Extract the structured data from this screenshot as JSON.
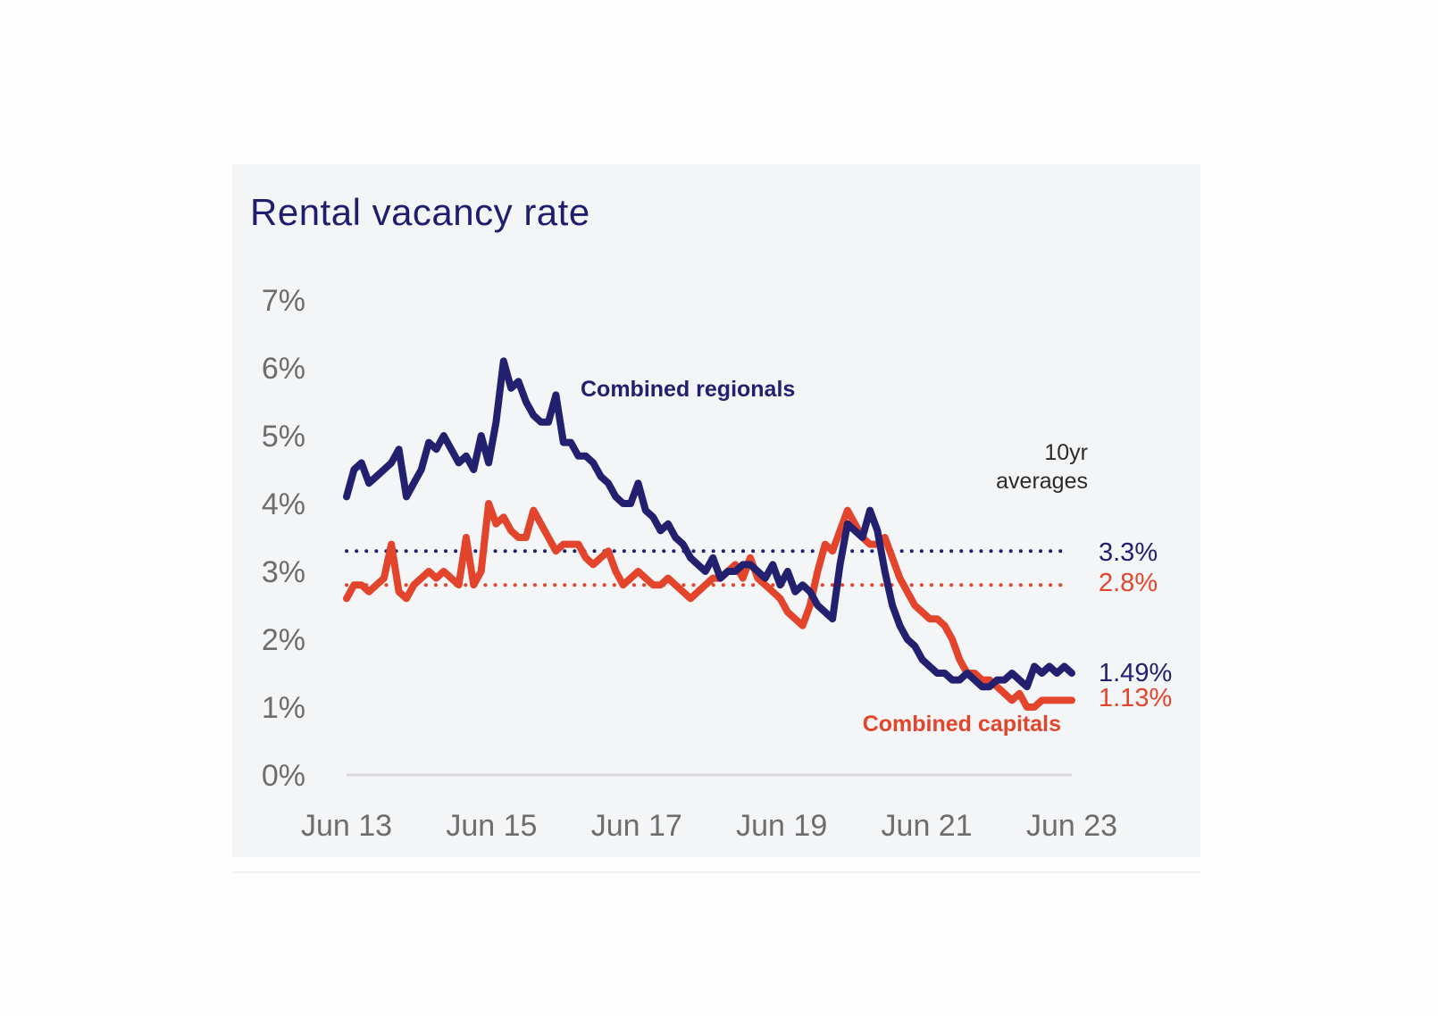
{
  "colors": {
    "regionals": "#23206f",
    "capitals": "#e2452b",
    "axis_text": "#6d6d6d",
    "baseline": "#d9d9dc",
    "panel": "#f4f5f7"
  },
  "chart_data": {
    "type": "line",
    "title": "Rental vacancy rate",
    "xlabel": "",
    "ylabel": "",
    "ylim": [
      0,
      7
    ],
    "yticks": [
      "0%",
      "1%",
      "2%",
      "3%",
      "4%",
      "5%",
      "6%",
      "7%"
    ],
    "xticks": [
      "Jun 13",
      "Jun 15",
      "Jun 17",
      "Jun 19",
      "Jun 21",
      "Jun 23"
    ],
    "x_start": "Jun 13",
    "x_end": "Jun 23",
    "grid": false,
    "series": [
      {
        "name": "Combined regionals",
        "color": "#23206f",
        "ten_year_average": 3.3,
        "ten_year_average_label": "3.3%",
        "latest_label": "1.49%",
        "values": [
          4.1,
          4.5,
          4.6,
          4.3,
          4.4,
          4.5,
          4.6,
          4.8,
          4.1,
          4.3,
          4.5,
          4.9,
          4.8,
          5.0,
          4.8,
          4.6,
          4.7,
          4.5,
          5.0,
          4.6,
          5.2,
          6.1,
          5.7,
          5.8,
          5.5,
          5.3,
          5.2,
          5.2,
          5.6,
          4.9,
          4.9,
          4.7,
          4.7,
          4.6,
          4.4,
          4.3,
          4.1,
          4.0,
          4.0,
          4.3,
          3.9,
          3.8,
          3.6,
          3.7,
          3.5,
          3.4,
          3.2,
          3.1,
          3.0,
          3.2,
          2.9,
          3.0,
          3.0,
          3.1,
          3.1,
          3.0,
          2.9,
          3.1,
          2.8,
          3.0,
          2.7,
          2.8,
          2.7,
          2.5,
          2.4,
          2.3,
          3.1,
          3.7,
          3.6,
          3.5,
          3.9,
          3.6,
          3.0,
          2.5,
          2.2,
          2.0,
          1.9,
          1.7,
          1.6,
          1.5,
          1.5,
          1.4,
          1.4,
          1.5,
          1.4,
          1.3,
          1.3,
          1.4,
          1.4,
          1.5,
          1.4,
          1.3,
          1.6,
          1.5,
          1.6,
          1.5,
          1.6,
          1.5
        ]
      },
      {
        "name": "Combined capitals",
        "color": "#e2452b",
        "ten_year_average": 2.8,
        "ten_year_average_label": "2.8%",
        "latest_label": "1.13%",
        "values": [
          2.6,
          2.8,
          2.8,
          2.7,
          2.8,
          2.9,
          3.4,
          2.7,
          2.6,
          2.8,
          2.9,
          3.0,
          2.9,
          3.0,
          2.9,
          2.8,
          3.5,
          2.8,
          3.0,
          4.0,
          3.7,
          3.8,
          3.6,
          3.5,
          3.5,
          3.9,
          3.7,
          3.5,
          3.3,
          3.4,
          3.4,
          3.4,
          3.2,
          3.1,
          3.2,
          3.3,
          3.0,
          2.8,
          2.9,
          3.0,
          2.9,
          2.8,
          2.8,
          2.9,
          2.8,
          2.7,
          2.6,
          2.7,
          2.8,
          2.9,
          2.9,
          3.0,
          3.1,
          2.9,
          3.2,
          2.9,
          2.8,
          2.7,
          2.6,
          2.4,
          2.3,
          2.2,
          2.5,
          3.0,
          3.4,
          3.3,
          3.6,
          3.9,
          3.7,
          3.5,
          3.4,
          3.4,
          3.5,
          3.2,
          2.9,
          2.7,
          2.5,
          2.4,
          2.3,
          2.3,
          2.2,
          2.0,
          1.7,
          1.5,
          1.5,
          1.4,
          1.4,
          1.3,
          1.2,
          1.1,
          1.2,
          1.0,
          1.0,
          1.1,
          1.1,
          1.1,
          1.1,
          1.1
        ]
      }
    ],
    "annotations": {
      "regionals_label": "Combined regionals",
      "capitals_label": "Combined capitals",
      "avg_note_line1": "10yr",
      "avg_note_line2": "averages"
    }
  }
}
